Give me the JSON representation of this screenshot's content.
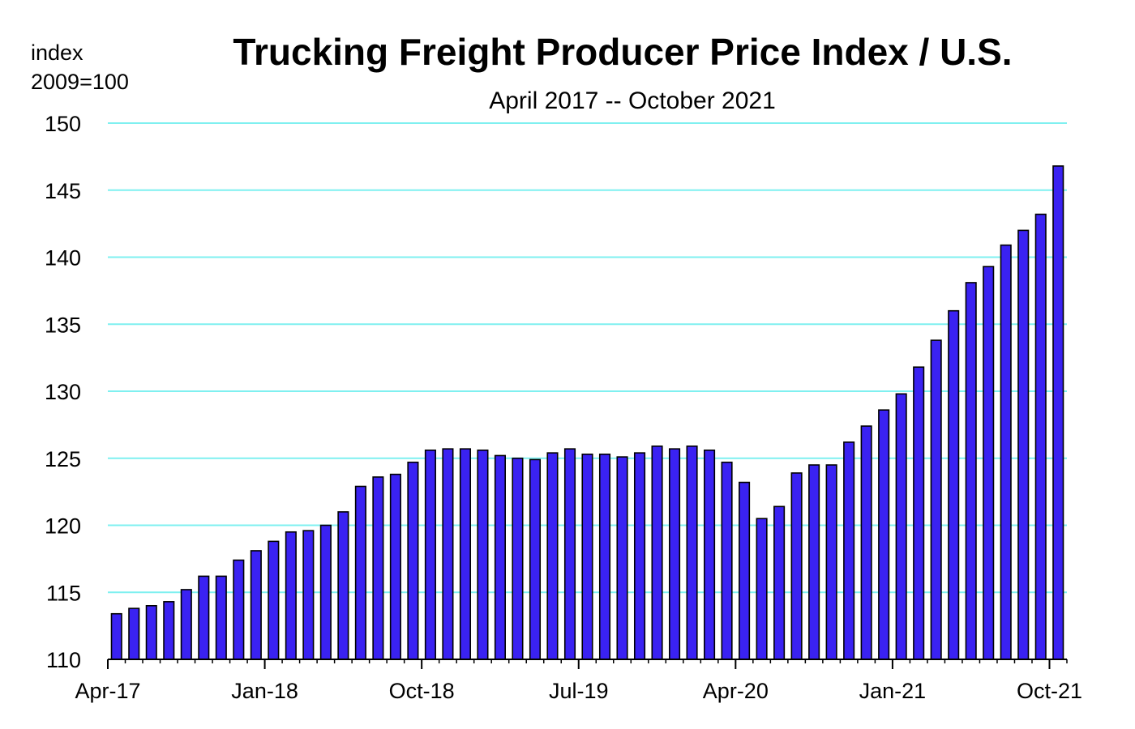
{
  "chart_data": {
    "type": "bar",
    "title": "Trucking Freight Producer Price Index / U.S.",
    "subtitle": "April 2017 -- October 2021",
    "ylabel": "index",
    "ylabel_line2": "2009=100",
    "xlabel": "",
    "ylim": [
      110,
      150
    ],
    "yticks": [
      110,
      115,
      120,
      125,
      130,
      135,
      140,
      145,
      150
    ],
    "grid": true,
    "legend": "none",
    "colors": {
      "bar_fill": "#3a22f2",
      "bar_stroke": "#000000",
      "grid": "#7ff0f0",
      "axis": "#000000"
    },
    "x_tick_labels": [
      "Apr-17",
      "Jan-18",
      "Oct-18",
      "Jul-19",
      "Apr-20",
      "Jan-21",
      "Oct-21"
    ],
    "x_tick_every": 9,
    "categories": [
      "2017-04",
      "2017-05",
      "2017-06",
      "2017-07",
      "2017-08",
      "2017-09",
      "2017-10",
      "2017-11",
      "2017-12",
      "2018-01",
      "2018-02",
      "2018-03",
      "2018-04",
      "2018-05",
      "2018-06",
      "2018-07",
      "2018-08",
      "2018-09",
      "2018-10",
      "2018-11",
      "2018-12",
      "2019-01",
      "2019-02",
      "2019-03",
      "2019-04",
      "2019-05",
      "2019-06",
      "2019-07",
      "2019-08",
      "2019-09",
      "2019-10",
      "2019-11",
      "2019-12",
      "2020-01",
      "2020-02",
      "2020-03",
      "2020-04",
      "2020-05",
      "2020-06",
      "2020-07",
      "2020-08",
      "2020-09",
      "2020-10",
      "2020-11",
      "2020-12",
      "2021-01",
      "2021-02",
      "2021-03",
      "2021-04",
      "2021-05",
      "2021-06",
      "2021-07",
      "2021-08",
      "2021-09",
      "2021-10"
    ],
    "values": [
      113.4,
      113.8,
      114.0,
      114.3,
      115.2,
      116.2,
      116.2,
      117.4,
      118.1,
      118.8,
      119.5,
      119.6,
      120.0,
      121.0,
      122.9,
      123.6,
      123.8,
      124.7,
      125.6,
      125.7,
      125.7,
      125.6,
      125.2,
      125.0,
      124.9,
      125.4,
      125.7,
      125.3,
      125.3,
      125.1,
      125.4,
      125.9,
      125.7,
      125.9,
      125.6,
      124.7,
      123.2,
      120.5,
      121.4,
      123.9,
      124.5,
      124.5,
      126.2,
      127.4,
      128.6,
      129.8,
      131.8,
      133.8,
      136.0,
      138.1,
      139.3,
      140.9,
      142.0,
      143.2,
      146.8
    ]
  }
}
